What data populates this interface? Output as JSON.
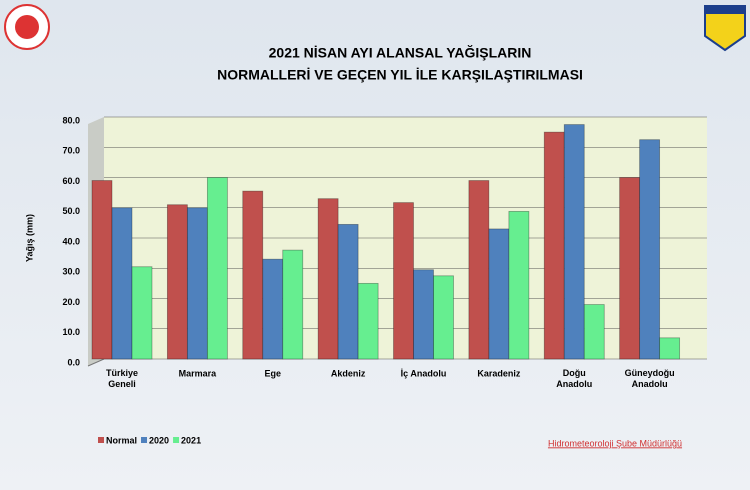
{
  "chart_data": {
    "type": "bar",
    "title": [
      "2021 NİSAN AYI ALANSAL YAĞIŞLARIN",
      "NORMALLERİ VE GEÇEN YIL İLE KARŞILAŞTIRILMASI"
    ],
    "y_label": "Yağış (mm)",
    "categories": [
      "Türkiye\nGeneli",
      "Marmara",
      "Ege",
      "Akdeniz",
      "İç Anadolu",
      "Karadeniz",
      "Doğu\nAnadolu",
      "Güneydoğu\nAnadolu"
    ],
    "series": [
      {
        "name": "Normal",
        "color": "#c0504d",
        "values": [
          59,
          51,
          55.5,
          53,
          51.7,
          59,
          75,
          60
        ]
      },
      {
        "name": "2020",
        "color": "#4f81bd",
        "values": [
          50,
          50,
          33,
          44.5,
          29.5,
          43,
          77.5,
          72.5
        ]
      },
      {
        "name": "2021",
        "color": "#66ee90",
        "values": [
          30.5,
          60,
          36,
          25,
          27.5,
          48.8,
          18,
          7
        ]
      }
    ],
    "ylim": [
      0,
      80
    ],
    "yticks": [
      {
        "value": 0,
        "label": "0.0"
      },
      {
        "value": 10,
        "label": "10.0"
      },
      {
        "value": 20,
        "label": "20.0"
      },
      {
        "value": 30,
        "label": "30.0"
      },
      {
        "value": 40,
        "label": "40.0"
      },
      {
        "value": 50,
        "label": "50.0"
      },
      {
        "value": 60,
        "label": "60.0"
      },
      {
        "value": 70,
        "label": "70.0"
      },
      {
        "value": 80,
        "label": "80.0"
      }
    ],
    "grid": true,
    "legend": "bottom-left",
    "annotation": "Hidrometeoroloji Şube Müdürlüğü"
  }
}
